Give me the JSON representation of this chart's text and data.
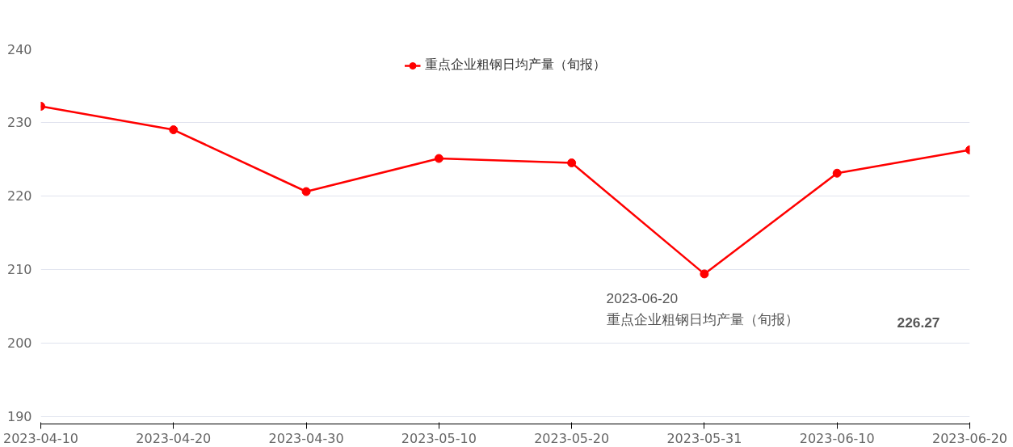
{
  "chart_data": {
    "type": "line",
    "categories": [
      "2023-04-10",
      "2023-04-20",
      "2023-04-30",
      "2023-05-10",
      "2023-05-20",
      "2023-05-31",
      "2023-06-10",
      "2023-06-20"
    ],
    "series": [
      {
        "name": "重点企业粗钢日均产量（旬报）",
        "color": "#ff0000",
        "values": [
          232.2,
          229.0,
          220.6,
          225.1,
          224.5,
          209.4,
          223.1,
          226.27
        ]
      }
    ],
    "ylim": [
      189,
      240
    ],
    "yticks": [
      190,
      200,
      210,
      220,
      230,
      240
    ],
    "grid": "y",
    "legend": "top",
    "marker": "circle",
    "line_style": "solid",
    "annotations": [
      "2023-06-20",
      "重点企业粗钢日均产量（旬报）",
      "226.27"
    ]
  }
}
